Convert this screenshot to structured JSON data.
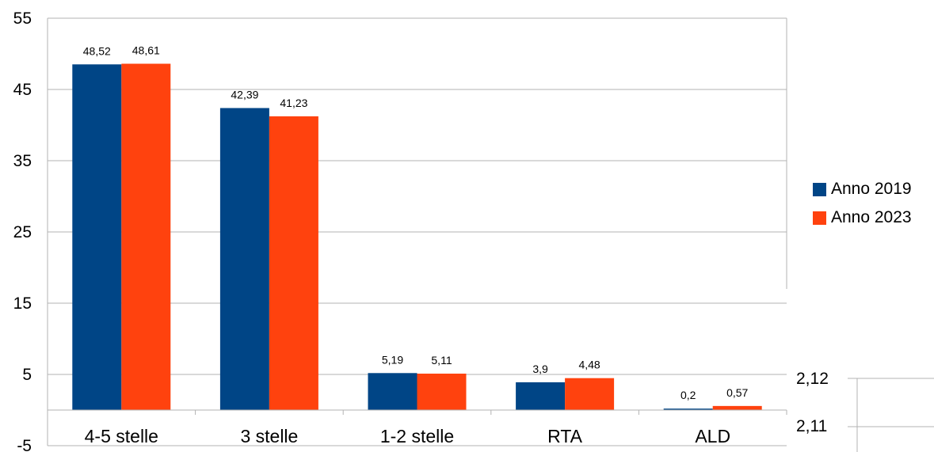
{
  "chart_data": {
    "type": "bar",
    "title": "",
    "xlabel": "",
    "ylabel": "",
    "ylim": [
      -5,
      55
    ],
    "yticks": [
      -5,
      5,
      15,
      25,
      35,
      45,
      55
    ],
    "ytick_labels": [
      "-5",
      "5",
      "15",
      "25",
      "35",
      "45",
      "55"
    ],
    "grid": true,
    "legend_position": "right",
    "categories": [
      "4-5 stelle",
      "3 stelle",
      "1-2 stelle",
      "RTA",
      "ALD"
    ],
    "series": [
      {
        "name": "Anno 2019",
        "color": "#004586",
        "values": [
          48.52,
          42.39,
          5.19,
          3.9,
          0.2
        ],
        "labels": [
          "48,52",
          "42,39",
          "5,19",
          "3,9",
          "0,2"
        ]
      },
      {
        "name": "Anno 2023",
        "color": "#ff420e",
        "values": [
          48.61,
          41.23,
          5.11,
          4.48,
          0.57
        ],
        "labels": [
          "48,61",
          "41,23",
          "5,11",
          "4,48",
          "0,57"
        ]
      }
    ]
  },
  "secondary_axis": {
    "tick_labels": [
      "2,12",
      "2,11"
    ]
  }
}
